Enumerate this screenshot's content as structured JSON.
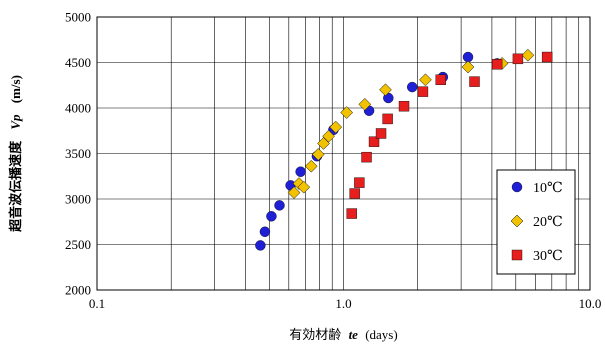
{
  "chart_data": {
    "type": "scatter",
    "xscale": "log",
    "xlim": [
      0.1,
      10.0
    ],
    "ylim": [
      2000,
      5000
    ],
    "yticks": [
      2000,
      2500,
      3000,
      3500,
      4000,
      4500,
      5000
    ],
    "xticks": [
      0.1,
      1.0,
      10.0
    ],
    "xtick_labels": [
      "0.1",
      "1.0",
      "10.0"
    ],
    "xlabel_prefix": "有効材齢",
    "xlabel_var": "te",
    "xlabel_unit": "(days)",
    "ylabel_prefix": "超音波伝播速度",
    "ylabel_var": "Vp",
    "ylabel_unit": "(m/s)",
    "grid": true,
    "legend_position": "right",
    "series": [
      {
        "name": "10℃",
        "marker": "circle",
        "color": "#1f1fd6",
        "points": [
          [
            0.46,
            2490
          ],
          [
            0.48,
            2640
          ],
          [
            0.51,
            2810
          ],
          [
            0.55,
            2930
          ],
          [
            0.61,
            3150
          ],
          [
            0.67,
            3300
          ],
          [
            0.78,
            3470
          ],
          [
            0.91,
            3760
          ],
          [
            1.27,
            3970
          ],
          [
            1.52,
            4110
          ],
          [
            1.9,
            4230
          ],
          [
            2.53,
            4340
          ],
          [
            3.2,
            4560
          ],
          [
            4.2,
            4490
          ]
        ]
      },
      {
        "name": "20℃",
        "marker": "diamond",
        "color": "#f2c200",
        "points": [
          [
            0.63,
            3070
          ],
          [
            0.66,
            3170
          ],
          [
            0.69,
            3130
          ],
          [
            0.74,
            3360
          ],
          [
            0.79,
            3490
          ],
          [
            0.83,
            3610
          ],
          [
            0.87,
            3690
          ],
          [
            0.93,
            3790
          ],
          [
            1.03,
            3950
          ],
          [
            1.22,
            4040
          ],
          [
            1.48,
            4200
          ],
          [
            2.15,
            4310
          ],
          [
            3.2,
            4450
          ],
          [
            4.4,
            4490
          ],
          [
            5.6,
            4580
          ]
        ]
      },
      {
        "name": "30℃",
        "marker": "square",
        "color": "#e61e1e",
        "points": [
          [
            1.08,
            2840
          ],
          [
            1.11,
            3060
          ],
          [
            1.16,
            3180
          ],
          [
            1.24,
            3460
          ],
          [
            1.33,
            3630
          ],
          [
            1.42,
            3720
          ],
          [
            1.51,
            3880
          ],
          [
            1.76,
            4020
          ],
          [
            2.1,
            4180
          ],
          [
            2.48,
            4310
          ],
          [
            3.4,
            4290
          ],
          [
            4.2,
            4480
          ],
          [
            5.1,
            4540
          ],
          [
            6.7,
            4560
          ]
        ]
      }
    ]
  }
}
